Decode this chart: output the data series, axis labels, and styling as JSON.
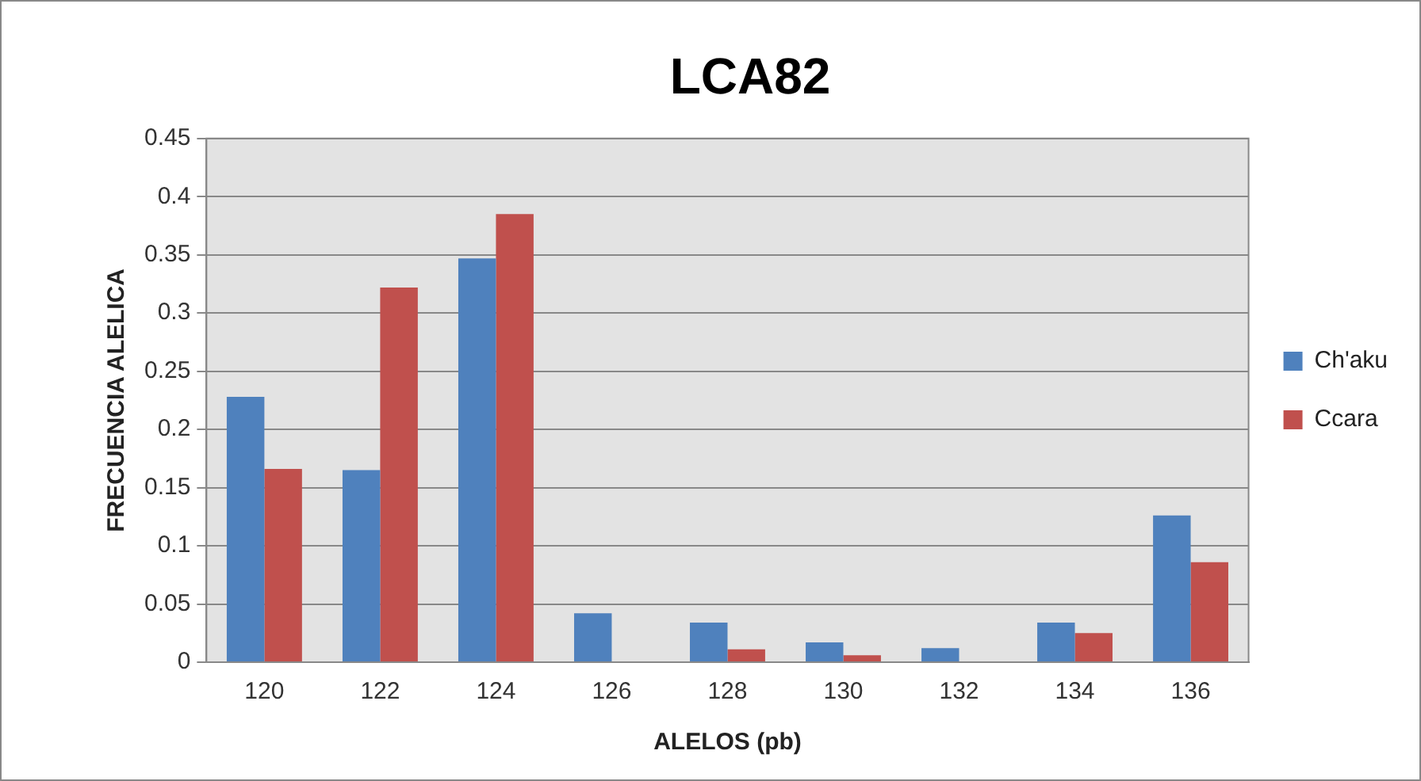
{
  "chart_data": {
    "type": "bar",
    "title": "LCA82",
    "xlabel": "ALELOS (pb)",
    "ylabel": "FRECUENCIA ALELICA",
    "categories": [
      "120",
      "122",
      "124",
      "126",
      "128",
      "130",
      "132",
      "134",
      "136"
    ],
    "series": [
      {
        "name": "Ch'aku",
        "color": "#4f81bd",
        "values": [
          0.228,
          0.165,
          0.347,
          0.042,
          0.034,
          0.017,
          0.012,
          0.034,
          0.126
        ]
      },
      {
        "name": "Ccara",
        "color": "#c0504d",
        "values": [
          0.166,
          0.322,
          0.385,
          0,
          0.011,
          0.006,
          0,
          0.025,
          0.086
        ]
      }
    ],
    "ylim": [
      0,
      0.45
    ],
    "yticks": [
      0,
      0.05,
      0.1,
      0.15,
      0.2,
      0.25,
      0.3,
      0.35,
      0.4,
      0.45
    ],
    "grid": "y",
    "legend": "right"
  }
}
